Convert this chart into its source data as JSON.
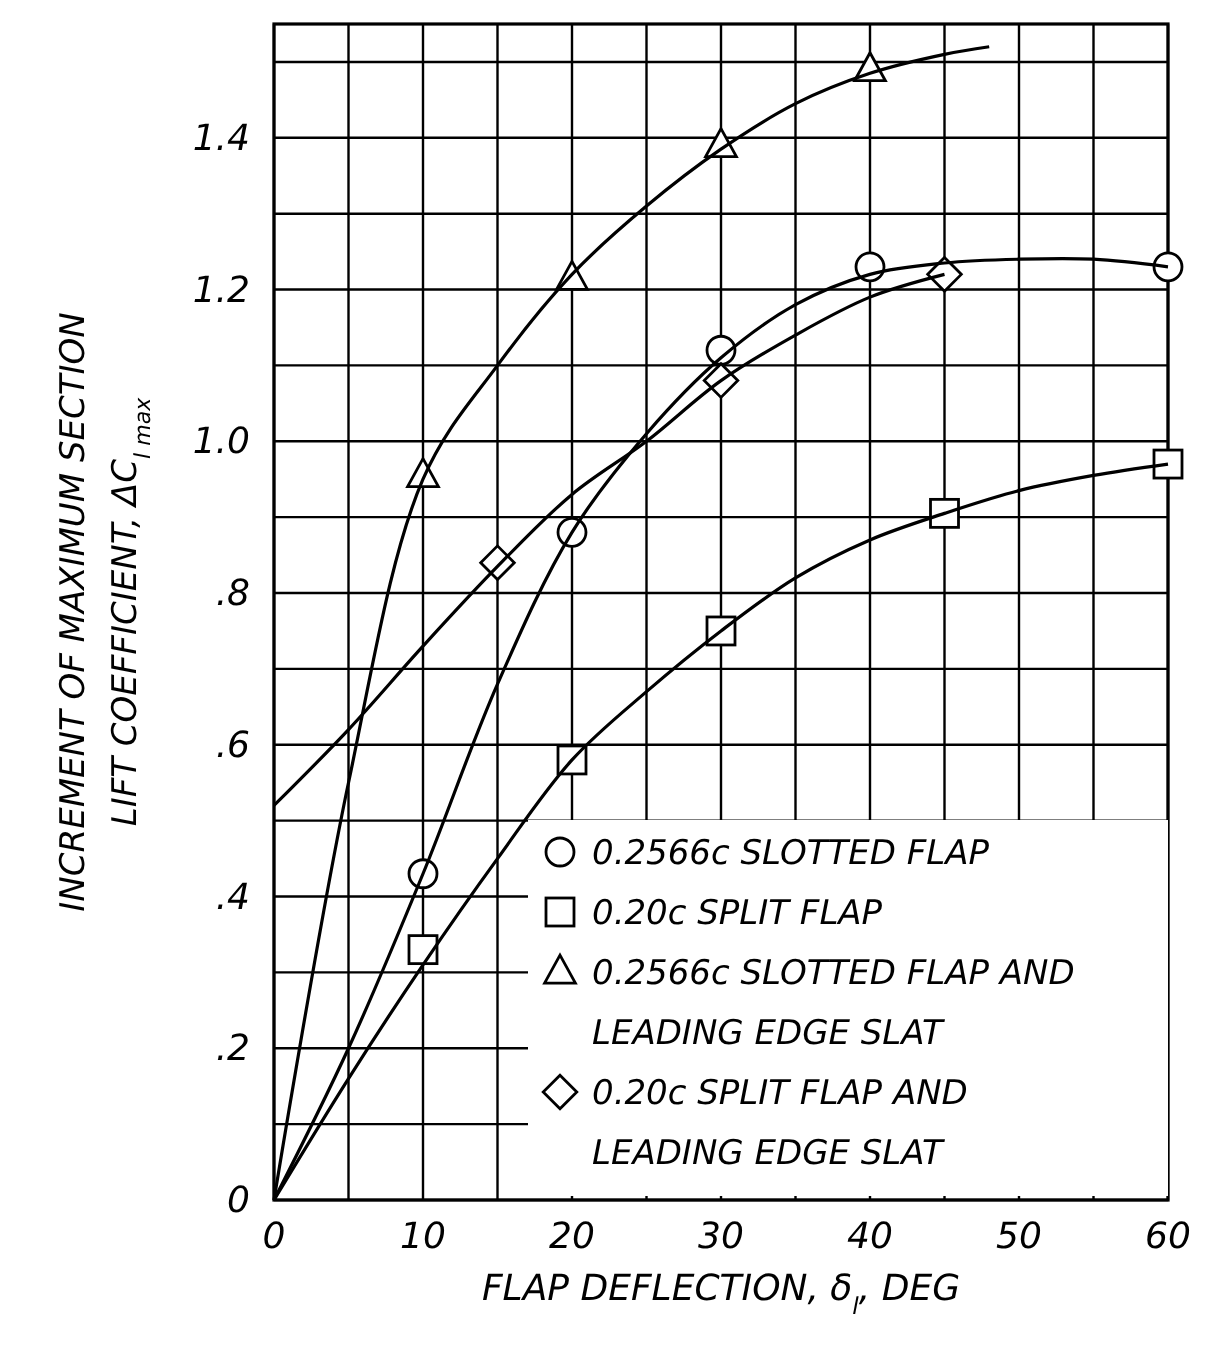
{
  "chart_data": {
    "type": "line",
    "xlabel": "FLAP DEFLECTION, δ$_{l}$, DEG",
    "ylabel": "INCREMENT OF MAXIMUM SECTION LIFT COEFFICIENT, ΔC$_{l max}$",
    "xlim": [
      0,
      60
    ],
    "ylim": [
      0,
      1.55
    ],
    "xticks": [
      0,
      {
        "value": 5,
        "label": null
      },
      10,
      {
        "value": 15,
        "label": null
      },
      20,
      {
        "value": 25,
        "label": null
      },
      30,
      {
        "value": 35,
        "label": null
      },
      40,
      {
        "value": 45,
        "label": null
      },
      50,
      {
        "value": 55,
        "label": null
      },
      60
    ],
    "yticks": [
      0,
      {
        "value": 0.1,
        "label": null
      },
      {
        "value": 0.2,
        "label": ".2"
      },
      {
        "value": 0.3,
        "label": null
      },
      {
        "value": 0.4,
        "label": ".4"
      },
      {
        "value": 0.5,
        "label": null
      },
      {
        "value": 0.6,
        "label": ".6"
      },
      {
        "value": 0.7,
        "label": null
      },
      {
        "value": 0.8,
        "label": ".8"
      },
      {
        "value": 0.9,
        "label": null
      },
      {
        "value": 1.0,
        "label": "1.0"
      },
      {
        "value": 1.1,
        "label": null
      },
      {
        "value": 1.2,
        "label": "1.2"
      },
      {
        "value": 1.3,
        "label": null
      },
      {
        "value": 1.4,
        "label": "1.4"
      },
      {
        "value": 1.5,
        "label": null
      }
    ],
    "grid": true,
    "legend": "bottom right",
    "line_style": "solid",
    "series": [
      {
        "type": "scatter",
        "name": "0.2566c SLOTTED FLAP",
        "color": "#000000",
        "marker": "circle",
        "x": [
          10,
          20,
          30,
          40,
          60
        ],
        "values": [
          0.43,
          0.88,
          1.12,
          1.23,
          1.23
        ]
      },
      {
        "type": "scatter",
        "name": "0.20c SPLIT FLAP",
        "color": "#000000",
        "marker": "square",
        "x": [
          10,
          20,
          30,
          45,
          60
        ],
        "values": [
          0.33,
          0.58,
          0.75,
          0.905,
          0.97
        ]
      },
      {
        "type": "scatter",
        "name": "0.2566c SLOTTED FLAP AND LEADING EDGE SLAT",
        "color": "#000000",
        "marker": "triangle",
        "x": [
          10,
          20,
          30,
          40
        ],
        "values": [
          0.955,
          1.215,
          1.39,
          1.49
        ]
      },
      {
        "type": "scatter",
        "name": "0.20c SPLIT FLAP AND LEADING EDGE SLAT",
        "color": "#000000",
        "marker": "diamond",
        "x": [
          15,
          30,
          45
        ],
        "values": [
          0.84,
          1.08,
          1.22
        ]
      },
      {
        "color": "#000000",
        "marker": "none",
        "x": [
          0,
          5,
          10,
          15,
          20,
          25,
          30,
          35,
          40,
          45,
          50,
          55,
          60
        ],
        "values": [
          0,
          0.2,
          0.43,
          0.68,
          0.88,
          1.01,
          1.11,
          1.18,
          1.22,
          1.235,
          1.24,
          1.24,
          1.23
        ]
      },
      {
        "color": "#000000",
        "marker": "none",
        "x": [
          0,
          5,
          10,
          15,
          20,
          25,
          30,
          35,
          40,
          45,
          50,
          55,
          60
        ],
        "values": [
          0,
          0.16,
          0.31,
          0.45,
          0.58,
          0.67,
          0.75,
          0.82,
          0.87,
          0.905,
          0.935,
          0.955,
          0.97
        ]
      },
      {
        "color": "#000000",
        "marker": "none",
        "x": [
          0,
          5,
          10,
          15,
          20,
          25,
          30,
          35,
          40,
          45,
          48
        ],
        "values": [
          0,
          0.55,
          0.95,
          1.1,
          1.22,
          1.31,
          1.385,
          1.445,
          1.485,
          1.51,
          1.52
        ]
      },
      {
        "color": "#000000",
        "marker": "none",
        "x": [
          0,
          5,
          10,
          15,
          20,
          25,
          30,
          35,
          40,
          45
        ],
        "values": [
          0.52,
          0.62,
          0.73,
          0.835,
          0.93,
          1.0,
          1.08,
          1.14,
          1.19,
          1.22
        ]
      }
    ]
  }
}
